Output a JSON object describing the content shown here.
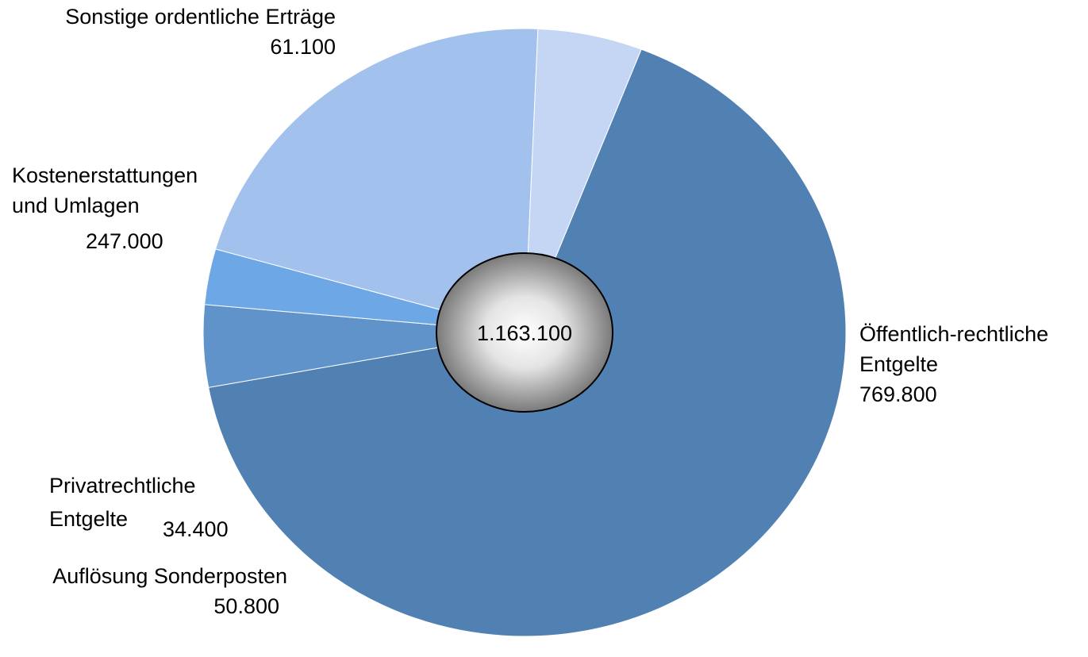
{
  "chart_data": {
    "type": "pie",
    "total_label": "1.163.100",
    "slices": [
      {
        "name_lines": [
          "Öffentlich-rechtliche",
          "Entgelte"
        ],
        "value": 769800,
        "value_label": "769.800",
        "color": "#5180B3"
      },
      {
        "name_lines": [
          "Auflösung Sonderposten"
        ],
        "value": 50800,
        "value_label": "50.800",
        "color": "#6093CA"
      },
      {
        "name_lines": [
          "Privatrechtliche",
          "Entgelte"
        ],
        "value": 34400,
        "value_label": "34.400",
        "color": "#6DA7E6"
      },
      {
        "name_lines": [
          "Kostenerstattungen",
          "und Umlagen"
        ],
        "value": 247000,
        "value_label": "247.000",
        "color": "#A2C1EC"
      },
      {
        "name_lines": [
          "Sonstige ordentliche Erträge"
        ],
        "value": 61100,
        "value_label": "61.100",
        "color": "#C4D6F3"
      }
    ]
  }
}
